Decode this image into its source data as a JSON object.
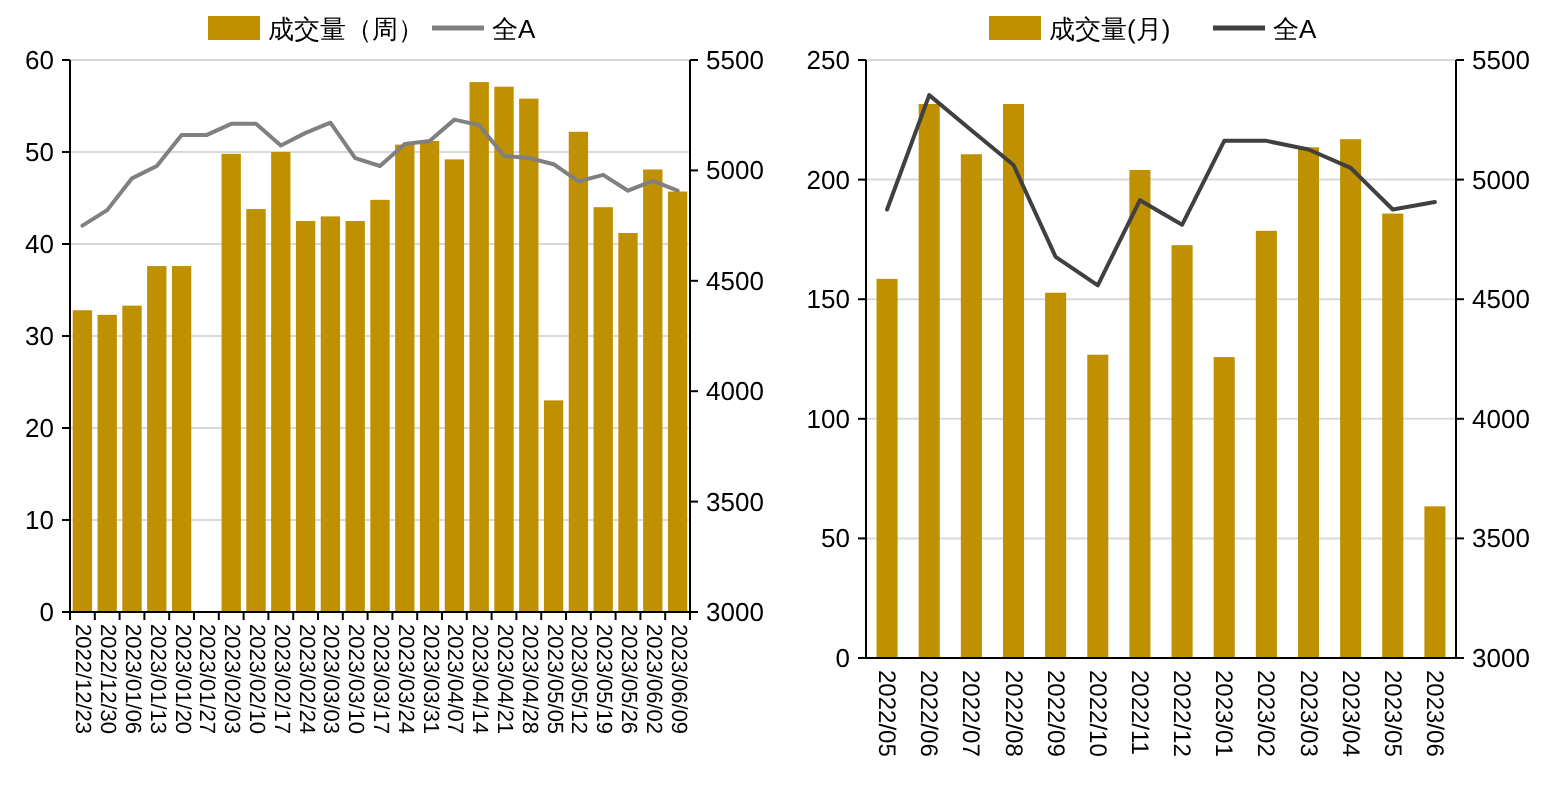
{
  "chart_data": [
    {
      "type": "bar",
      "categories": [
        "2022/12/23",
        "2022/12/30",
        "2023/01/06",
        "2023/01/13",
        "2023/01/20",
        "2023/01/27",
        "2023/02/03",
        "2023/02/10",
        "2023/02/17",
        "2023/02/24",
        "2023/03/03",
        "2023/03/10",
        "2023/03/17",
        "2023/03/24",
        "2023/03/31",
        "2023/04/07",
        "2023/04/14",
        "2023/04/21",
        "2023/04/28",
        "2023/05/05",
        "2023/05/12",
        "2023/05/19",
        "2023/05/26",
        "2023/06/02",
        "2023/06/09"
      ],
      "series": [
        {
          "name": "成交量（周）",
          "color": "#bf9000",
          "values": [
            32.8,
            32.3,
            33.3,
            37.6,
            37.6,
            null,
            49.8,
            43.8,
            50.0,
            42.5,
            43.0,
            42.5,
            44.8,
            50.8,
            51.2,
            49.2,
            57.6,
            57.1,
            55.8,
            23.0,
            52.2,
            44.0,
            41.2,
            48.1,
            45.7
          ]
        },
        {
          "name": "全A",
          "type": "line",
          "axis": "y2",
          "color": "#808080",
          "values": [
            4750,
            4820,
            4964,
            5020,
            5160,
            5160,
            5211,
            5211,
            5113,
            5170,
            5216,
            5056,
            5020,
            5120,
            5133,
            5230,
            5205,
            5065,
            5056,
            5028,
            4950,
            4980,
            4908,
            4953,
            4908
          ]
        }
      ],
      "ylim": [
        0,
        60
      ],
      "yticks": [
        0,
        10,
        20,
        30,
        40,
        50,
        60
      ],
      "y2lim": [
        3000,
        5500
      ],
      "y2ticks": [
        3000,
        3500,
        4000,
        4500,
        5000,
        5500
      ],
      "grid": "y",
      "legend": "top"
    },
    {
      "type": "bar",
      "categories": [
        "2022/05",
        "2022/06",
        "2022/07",
        "2022/08",
        "2022/09",
        "2022/10",
        "2022/11",
        "2022/12",
        "2023/01",
        "2023/02",
        "2023/03",
        "2023/04",
        "2023/05",
        "2023/06"
      ],
      "series": [
        {
          "name": "成交量(月)",
          "color": "#bf9000",
          "values": [
            158.5,
            231.6,
            210.6,
            231.6,
            152.7,
            126.8,
            204.0,
            172.6,
            125.8,
            178.6,
            213.5,
            216.9,
            185.8,
            63.4
          ]
        },
        {
          "name": "全A",
          "type": "line",
          "axis": "y2",
          "color": "#404040",
          "values": [
            4875,
            5353,
            5206,
            5061,
            4677,
            4558,
            4914,
            4811,
            5162,
            5162,
            5126,
            5049,
            4875,
            4906
          ]
        }
      ],
      "ylim": [
        0,
        250
      ],
      "yticks": [
        0,
        50,
        100,
        150,
        200,
        250
      ],
      "y2lim": [
        3000,
        5500
      ],
      "y2ticks": [
        3000,
        3500,
        4000,
        4500,
        5000,
        5500
      ],
      "grid": "y",
      "legend": "top"
    }
  ]
}
